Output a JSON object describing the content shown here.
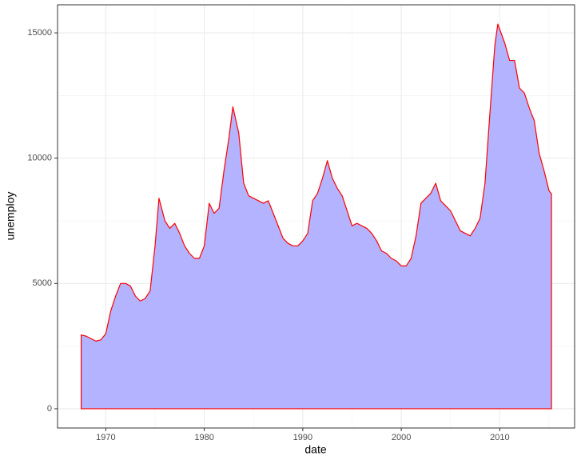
{
  "chart_data": {
    "type": "area",
    "x_label": "date",
    "y_label": "unemploy",
    "x": [
      1967.5,
      1968.0,
      1968.5,
      1969.0,
      1969.5,
      1970.0,
      1970.5,
      1971.0,
      1971.5,
      1972.0,
      1972.5,
      1973.0,
      1973.5,
      1974.0,
      1974.5,
      1975.0,
      1975.4,
      1976.0,
      1976.5,
      1977.0,
      1977.5,
      1978.0,
      1978.5,
      1979.0,
      1979.5,
      1980.0,
      1980.5,
      1981.0,
      1981.5,
      1982.0,
      1982.5,
      1982.9,
      1983.5,
      1984.0,
      1984.5,
      1985.0,
      1985.5,
      1986.0,
      1986.5,
      1987.0,
      1987.5,
      1988.0,
      1988.5,
      1989.0,
      1989.5,
      1990.0,
      1990.5,
      1991.0,
      1991.5,
      1992.0,
      1992.5,
      1993.0,
      1993.5,
      1994.0,
      1994.5,
      1995.0,
      1995.5,
      1996.0,
      1996.5,
      1997.0,
      1997.5,
      1998.0,
      1998.5,
      1999.0,
      1999.5,
      2000.0,
      2000.5,
      2001.0,
      2001.5,
      2002.0,
      2002.5,
      2003.0,
      2003.5,
      2004.0,
      2004.5,
      2005.0,
      2005.5,
      2006.0,
      2006.5,
      2007.0,
      2007.5,
      2008.0,
      2008.5,
      2009.0,
      2009.5,
      2009.8,
      2010.5,
      2011.0,
      2011.5,
      2012.0,
      2012.5,
      2013.0,
      2013.5,
      2014.0,
      2014.5,
      2015.0,
      2015.25
    ],
    "values": [
      2944,
      2900,
      2800,
      2700,
      2750,
      3000,
      3900,
      4500,
      5000,
      5000,
      4900,
      4500,
      4300,
      4400,
      4700,
      6500,
      8400,
      7500,
      7200,
      7400,
      7000,
      6500,
      6200,
      6000,
      6000,
      6500,
      8200,
      7800,
      8000,
      9500,
      10800,
      12050,
      11000,
      9000,
      8500,
      8400,
      8300,
      8200,
      8300,
      7800,
      7300,
      6800,
      6600,
      6500,
      6500,
      6700,
      7000,
      8300,
      8600,
      9200,
      9900,
      9200,
      8800,
      8500,
      7900,
      7300,
      7400,
      7300,
      7200,
      7000,
      6700,
      6300,
      6200,
      6000,
      5900,
      5700,
      5700,
      6000,
      6900,
      8200,
      8400,
      8600,
      9000,
      8300,
      8100,
      7900,
      7500,
      7100,
      7000,
      6900,
      7200,
      7600,
      9000,
      11800,
      14500,
      15352,
      14600,
      13900,
      13900,
      12800,
      12600,
      12000,
      11500,
      10200,
      9500,
      8700,
      8575
    ],
    "fill": "#b3b3ff",
    "color": "#ff0000",
    "xlim": [
      1965.1,
      2017.6
    ],
    "xticks": [
      1970,
      1980,
      1990,
      2000,
      2010
    ],
    "xminor": [
      1965,
      1975,
      1985,
      1995,
      2005,
      2015
    ],
    "ylim": [
      -768,
      16120
    ],
    "yticks": [
      0,
      5000,
      10000,
      15000
    ],
    "yminor": [
      2500,
      7500,
      12500
    ],
    "grid": true
  }
}
